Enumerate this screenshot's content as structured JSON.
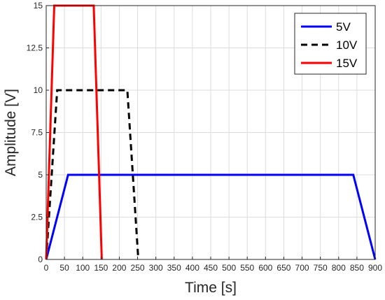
{
  "chart_data": {
    "type": "line",
    "xlabel": "Time [s]",
    "ylabel": "Amplitude [V]",
    "xlim": [
      0,
      900
    ],
    "ylim": [
      0,
      15
    ],
    "xticks": [
      0,
      50,
      100,
      150,
      200,
      250,
      300,
      350,
      400,
      450,
      500,
      550,
      600,
      650,
      700,
      750,
      800,
      850,
      900
    ],
    "yticks": [
      0,
      2.5,
      5,
      7.5,
      10,
      12.5,
      15
    ],
    "ytick_labels": [
      "0",
      "2.5",
      "5",
      "7.5",
      "10",
      "12.5",
      "15"
    ],
    "grid": true,
    "legend": "top-right",
    "series": [
      {
        "name": "5V",
        "color": "#0000ff",
        "style": "solid",
        "x": [
          0,
          60,
          840,
          900
        ],
        "y": [
          0,
          5,
          5,
          0
        ]
      },
      {
        "name": "10V",
        "color": "#000000",
        "style": "dashed",
        "x": [
          0,
          30,
          222,
          252
        ],
        "y": [
          0,
          10,
          10,
          0
        ]
      },
      {
        "name": "15V",
        "color": "#ff0000",
        "style": "solid",
        "x": [
          0,
          22,
          130,
          152
        ],
        "y": [
          0,
          15,
          15,
          0
        ]
      }
    ]
  }
}
